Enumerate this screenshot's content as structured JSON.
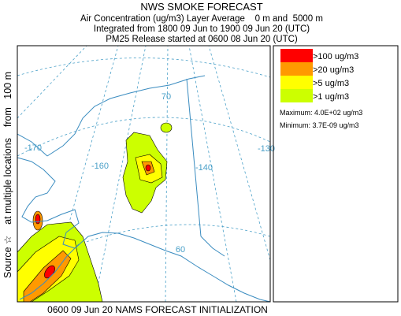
{
  "header": {
    "title": "NWS SMOKE FORECAST",
    "lines": [
      "Air Concentration (ug/m3) Layer Average    0 m and  5000 m",
      "Integrated from 1800 09 Jun to 1900 09 Jun 20 (UTC)",
      "PM25 Release started at 0600 08 Jun 20 (UTC)"
    ]
  },
  "legend": {
    "items": [
      {
        "label": ">100 ug/m3",
        "color": "#ff0000"
      },
      {
        "label": ">20 ug/m3",
        "color": "#ff9900"
      },
      {
        "label": ">5 ug/m3",
        "color": "#ffff00"
      },
      {
        "label": ">1 ug/m3",
        "color": "#ccff00"
      }
    ],
    "maximum": "Maximum: 4.0E+02 ug/m3",
    "minimum": "Minimum: 3.7E-09 ug/m3"
  },
  "side_label": "Source ☆    at multiple locations    from   100 m",
  "footer": "0600 09 Jun 20 NAMS FORECAST INITIALIZATION",
  "map_labels": [
    "70",
    "-170",
    "-160",
    "-140",
    "-130",
    "60"
  ]
}
